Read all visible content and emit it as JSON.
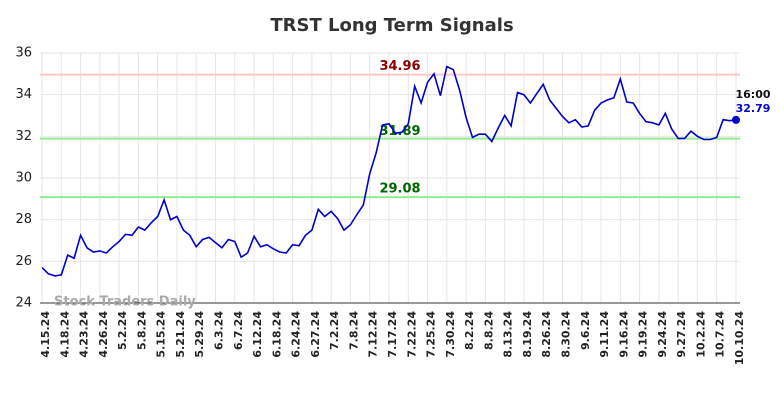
{
  "chart_data": {
    "type": "line",
    "title": "TRST Long Term Signals",
    "watermark": "Stock Traders Daily",
    "categories": [
      "4.15.24",
      null,
      null,
      "4.18.24",
      null,
      null,
      "4.23.24",
      null,
      null,
      "4.26.24",
      null,
      null,
      "5.2.24",
      null,
      null,
      "5.8.24",
      null,
      null,
      "5.15.24",
      null,
      null,
      "5.21.24",
      null,
      null,
      "5.29.24",
      null,
      null,
      "6.3.24",
      null,
      null,
      "6.7.24",
      null,
      null,
      "6.12.24",
      null,
      null,
      "6.18.24",
      null,
      null,
      "6.24.24",
      null,
      null,
      "6.27.24",
      null,
      null,
      "7.2.24",
      null,
      null,
      "7.8.24",
      null,
      null,
      "7.12.24",
      null,
      null,
      "7.17.24",
      null,
      null,
      "7.22.24",
      null,
      null,
      "7.25.24",
      null,
      null,
      "7.30.24",
      null,
      null,
      "8.2.24",
      null,
      null,
      "8.8.24",
      null,
      null,
      "8.13.24",
      null,
      null,
      "8.19.24",
      null,
      null,
      "8.26.24",
      null,
      null,
      "8.30.24",
      null,
      null,
      "9.6.24",
      null,
      null,
      "9.11.24",
      null,
      null,
      "9.16.24",
      null,
      null,
      "9.19.24",
      null,
      null,
      "9.24.24",
      null,
      null,
      "9.27.24",
      null,
      null,
      "10.2.24",
      null,
      null,
      "10.7.24",
      null,
      null,
      "10.10.24"
    ],
    "values": [
      25.7,
      25.4,
      25.3,
      25.35,
      26.3,
      26.15,
      27.25,
      26.65,
      26.45,
      26.5,
      26.4,
      26.7,
      26.95,
      27.3,
      27.25,
      27.65,
      27.5,
      27.85,
      28.15,
      28.95,
      28.0,
      28.15,
      27.5,
      27.25,
      26.7,
      27.05,
      27.15,
      26.9,
      26.65,
      27.05,
      26.95,
      26.2,
      26.4,
      27.2,
      26.7,
      26.8,
      26.6,
      26.45,
      26.4,
      26.8,
      26.75,
      27.25,
      27.5,
      28.5,
      28.15,
      28.4,
      28.05,
      27.5,
      27.75,
      28.25,
      28.7,
      30.2,
      31.2,
      32.55,
      32.6,
      32.15,
      32.2,
      32.6,
      34.4,
      33.6,
      34.6,
      35.0,
      33.95,
      35.35,
      35.2,
      34.2,
      32.9,
      31.95,
      32.1,
      32.1,
      31.75,
      32.4,
      33.0,
      32.5,
      34.1,
      34.0,
      33.6,
      34.05,
      34.5,
      33.75,
      33.35,
      32.95,
      32.65,
      32.8,
      32.45,
      32.5,
      33.25,
      33.6,
      33.75,
      33.85,
      34.75,
      33.65,
      33.6,
      33.1,
      32.7,
      32.65,
      32.55,
      33.1,
      32.35,
      31.9,
      31.9,
      32.25,
      32.0,
      31.85,
      31.85,
      31.95,
      32.8,
      32.75,
      32.79
    ],
    "color": "#0000cc",
    "last_label": "16:00",
    "ylim": [
      24,
      36
    ],
    "yticks": [
      24,
      26,
      28,
      30,
      32,
      34,
      36
    ],
    "grid": true,
    "hlines": [
      {
        "value": 34.96,
        "color": "#ffc8c8",
        "label_color": "#8b0000"
      },
      {
        "value": 31.89,
        "color": "#90ee90",
        "label_color": "#006400"
      },
      {
        "value": 29.08,
        "color": "#90ee90",
        "label_color": "#006400"
      }
    ]
  }
}
